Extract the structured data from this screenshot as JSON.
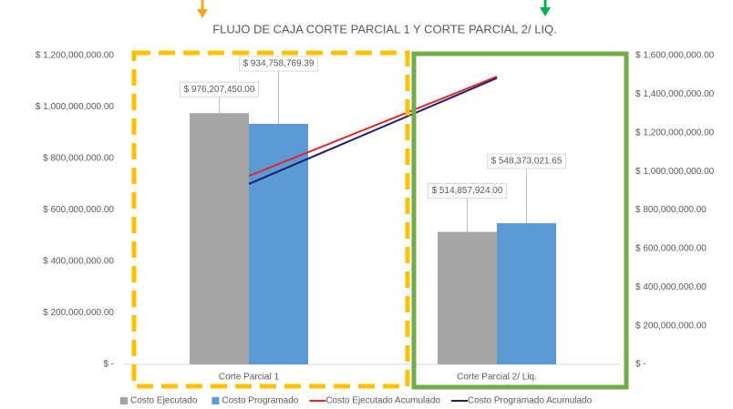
{
  "chart_data": {
    "type": "bar",
    "title": "FLUJO DE CAJA CORTE PARCIAL 1 Y CORTE PARCIAL 2/ LIQ.",
    "categories": [
      "Corte Parcial 1",
      "Corte Parcial 2/ Liq."
    ],
    "series": [
      {
        "name": "Costo Ejecutado",
        "type": "bar",
        "color": "#a5a5a5",
        "values": [
          976207450,
          514857924
        ],
        "value_labels": [
          "$ 976,207,450.00",
          "$ 514,857,924.00"
        ]
      },
      {
        "name": "Costo Programado",
        "type": "bar",
        "color": "#5b9bd5",
        "values": [
          934758769.39,
          548373021.65
        ],
        "value_labels": [
          "$ 934,758,769.39",
          "$ 548,373,021.65"
        ]
      },
      {
        "name": "Costo Ejecutado Acumulado",
        "type": "line",
        "axis": "y2",
        "color": "#e8242a",
        "values": [
          976207450,
          1491065374
        ]
      },
      {
        "name": "Costo Programado Acumulado",
        "type": "line",
        "axis": "y2",
        "color": "#1f1f6e",
        "values": [
          934758769.39,
          1483131791.04
        ]
      }
    ],
    "ylim": [
      0,
      1200000000
    ],
    "yticks": [
      {
        "value": 0,
        "label": "$ -"
      },
      {
        "value": 200000000,
        "label": "$ 200,000,000.00"
      },
      {
        "value": 400000000,
        "label": "$ 400,000,000.00"
      },
      {
        "value": 600000000,
        "label": "$ 600,000,000.00"
      },
      {
        "value": 800000000,
        "label": "$ 800,000,000.00"
      },
      {
        "value": 1000000000,
        "label": "$ 1,000,000,000.00"
      },
      {
        "value": 1200000000,
        "label": "$ 1,200,000,000.00"
      }
    ],
    "y2lim": [
      0,
      1600000000
    ],
    "y2ticks": [
      {
        "value": 0,
        "label": "$ -"
      },
      {
        "value": 200000000,
        "label": "$ 200,000,000.00"
      },
      {
        "value": 400000000,
        "label": "$ 400,000,000.00"
      },
      {
        "value": 600000000,
        "label": "$ 600,000,000.00"
      },
      {
        "value": 800000000,
        "label": "$ 800,000,000.00"
      },
      {
        "value": 1000000000,
        "label": "$ 1,000,000,000.00"
      },
      {
        "value": 1200000000,
        "label": "$ 1,200,000,000.00"
      },
      {
        "value": 1400000000,
        "label": "$ 1,400,000,000.00"
      },
      {
        "value": 1600000000,
        "label": "$ 1,600,000,000.00"
      }
    ],
    "legend": "bottom"
  }
}
